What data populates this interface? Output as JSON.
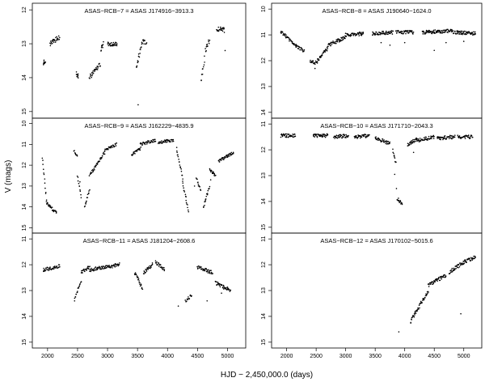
{
  "figure": {
    "ylabel": "V (mags)",
    "xlabel": "HJD − 2,450,000.0 (days)"
  },
  "chart_data": [
    {
      "type": "scatter",
      "title": "ASAS−RCB−7 = ASAS J174916−3913.3",
      "xlim": [
        1800,
        5250
      ],
      "ylim": [
        15.1,
        11.9
      ],
      "y_inverted": true,
      "x_ticks": [],
      "y_ticks": [
        12,
        13,
        14,
        15
      ],
      "series": [
        {
          "segments": [
            {
              "x": [
                1930,
                1960
              ],
              "y": [
                13.55,
                13.55
              ]
            },
            {
              "x": [
                2040,
                2200
              ],
              "y": [
                13.0,
                12.8
              ]
            },
            {
              "x": [
                2480,
                2510
              ],
              "y": [
                13.9,
                13.95
              ]
            },
            {
              "x": [
                2700,
                2880
              ],
              "y": [
                14.0,
                13.6
              ]
            },
            {
              "x": [
                2890,
                2930
              ],
              "y": [
                13.2,
                13.0
              ]
            },
            {
              "x": [
                3000,
                3160
              ],
              "y": [
                13.0,
                13.0
              ]
            },
            {
              "x": [
                3480,
                3580
              ],
              "y": [
                13.7,
                12.95
              ]
            },
            {
              "x": [
                3590,
                3650
              ],
              "y": [
                12.9,
                13.0
              ]
            },
            {
              "x": [
                4560,
                4620
              ],
              "y": [
                14.1,
                13.4
              ]
            },
            {
              "x": [
                4630,
                4700
              ],
              "y": [
                13.2,
                12.9
              ]
            },
            {
              "x": [
                4820,
                4950
              ],
              "y": [
                12.55,
                12.6
              ]
            }
          ],
          "points": [
            {
              "x": 3510,
              "y": 14.8
            },
            {
              "x": 4960,
              "y": 13.2
            }
          ]
        }
      ]
    },
    {
      "type": "scatter",
      "title": "ASAS−RCB−8 = ASAS J190640−1624.0",
      "xlim": [
        1800,
        5250
      ],
      "ylim": [
        14.1,
        9.9
      ],
      "y_inverted": true,
      "x_ticks": [],
      "y_ticks": [
        10,
        11,
        12,
        13,
        14
      ],
      "series": [
        {
          "segments": [
            {
              "x": [
                1900,
                2100
              ],
              "y": [
                10.85,
                11.3
              ]
            },
            {
              "x": [
                2100,
                2300
              ],
              "y": [
                11.3,
                11.65
              ]
            },
            {
              "x": [
                2400,
                2520
              ],
              "y": [
                12.0,
                12.1
              ]
            },
            {
              "x": [
                2520,
                2700
              ],
              "y": [
                12.0,
                11.5
              ]
            },
            {
              "x": [
                2700,
                3000
              ],
              "y": [
                11.4,
                11.1
              ]
            },
            {
              "x": [
                3000,
                3300
              ],
              "y": [
                11.0,
                10.95
              ]
            },
            {
              "x": [
                3450,
                3800
              ],
              "y": [
                10.95,
                10.9
              ]
            },
            {
              "x": [
                3850,
                4150
              ],
              "y": [
                10.9,
                10.9
              ]
            },
            {
              "x": [
                4300,
                4800
              ],
              "y": [
                10.9,
                10.85
              ]
            },
            {
              "x": [
                4800,
                5200
              ],
              "y": [
                10.9,
                10.95
              ]
            }
          ],
          "points": [
            {
              "x": 2480,
              "y": 12.3
            },
            {
              "x": 3600,
              "y": 11.3
            },
            {
              "x": 3750,
              "y": 11.4
            },
            {
              "x": 4000,
              "y": 11.3
            },
            {
              "x": 4500,
              "y": 11.6
            },
            {
              "x": 4700,
              "y": 11.3
            },
            {
              "x": 5000,
              "y": 11.25
            }
          ]
        }
      ]
    },
    {
      "type": "scatter",
      "title": "ASAS−RCB−9 = ASAS J162229−4835.9",
      "xlim": [
        1800,
        5250
      ],
      "ylim": [
        15.1,
        9.9
      ],
      "y_inverted": true,
      "x_ticks": [],
      "y_ticks": [
        10,
        11,
        12,
        13,
        14,
        15
      ],
      "series": [
        {
          "segments": [
            {
              "x": [
                1910,
                1980
              ],
              "y": [
                11.6,
                13.6
              ]
            },
            {
              "x": [
                1980,
                2150
              ],
              "y": [
                13.8,
                14.3
              ]
            },
            {
              "x": [
                2440,
                2500
              ],
              "y": [
                11.3,
                11.6
              ]
            },
            {
              "x": [
                2500,
                2560
              ],
              "y": [
                12.5,
                13.5
              ]
            },
            {
              "x": [
                2620,
                2700
              ],
              "y": [
                14.0,
                13.2
              ]
            },
            {
              "x": [
                2700,
                2950
              ],
              "y": [
                12.5,
                11.4
              ]
            },
            {
              "x": [
                2950,
                3150
              ],
              "y": [
                11.3,
                11.0
              ]
            },
            {
              "x": [
                3400,
                3550
              ],
              "y": [
                11.5,
                11.2
              ]
            },
            {
              "x": [
                3550,
                3800
              ],
              "y": [
                11.0,
                10.8
              ]
            },
            {
              "x": [
                3850,
                4100
              ],
              "y": [
                10.9,
                10.8
              ]
            },
            {
              "x": [
                4150,
                4250
              ],
              "y": [
                11.2,
                12.6
              ]
            },
            {
              "x": [
                4250,
                4350
              ],
              "y": [
                12.8,
                14.2
              ]
            },
            {
              "x": [
                4480,
                4550
              ],
              "y": [
                12.6,
                13.2
              ]
            },
            {
              "x": [
                4600,
                4700
              ],
              "y": [
                14.0,
                13.0
              ]
            },
            {
              "x": [
                4700,
                4800
              ],
              "y": [
                12.2,
                12.5
              ]
            },
            {
              "x": [
                4850,
                5100
              ],
              "y": [
                11.8,
                11.4
              ]
            }
          ],
          "points": [
            {
              "x": 2540,
              "y": 12.8
            },
            {
              "x": 4450,
              "y": 13.0
            },
            {
              "x": 4720,
              "y": 12.7
            }
          ]
        }
      ]
    },
    {
      "type": "scatter",
      "title": "ASAS−RCB−10 = ASAS J171710−2043.3",
      "xlim": [
        1800,
        5250
      ],
      "ylim": [
        15.1,
        10.9
      ],
      "y_inverted": true,
      "x_ticks": [],
      "y_ticks": [
        11,
        12,
        13,
        14,
        15
      ],
      "series": [
        {
          "segments": [
            {
              "x": [
                1900,
                2150
              ],
              "y": [
                11.45,
                11.45
              ]
            },
            {
              "x": [
                2450,
                2700
              ],
              "y": [
                11.45,
                11.45
              ]
            },
            {
              "x": [
                2800,
                3050
              ],
              "y": [
                11.5,
                11.45
              ]
            },
            {
              "x": [
                3150,
                3400
              ],
              "y": [
                11.5,
                11.45
              ]
            },
            {
              "x": [
                3500,
                3750
              ],
              "y": [
                11.55,
                11.75
              ]
            },
            {
              "x": [
                3800,
                3850
              ],
              "y": [
                12.0,
                12.5
              ]
            },
            {
              "x": [
                3870,
                3960
              ],
              "y": [
                13.9,
                14.1
              ]
            },
            {
              "x": [
                4050,
                4200
              ],
              "y": [
                11.8,
                11.6
              ]
            },
            {
              "x": [
                4200,
                4500
              ],
              "y": [
                11.65,
                11.5
              ]
            },
            {
              "x": [
                4550,
                4850
              ],
              "y": [
                11.55,
                11.5
              ]
            },
            {
              "x": [
                4900,
                5150
              ],
              "y": [
                11.5,
                11.5
              ]
            }
          ],
          "points": [
            {
              "x": 3830,
              "y": 12.95
            },
            {
              "x": 3860,
              "y": 13.5
            },
            {
              "x": 4150,
              "y": 12.1
            }
          ]
        }
      ]
    },
    {
      "type": "scatter",
      "title": "ASAS−RCB−11 = ASAS J181204−2608.6",
      "xlim": [
        1800,
        5250
      ],
      "ylim": [
        15.1,
        10.9
      ],
      "y_inverted": true,
      "x_ticks": [
        2000,
        2500,
        3000,
        3500,
        4000,
        4500,
        5000
      ],
      "y_ticks": [
        11,
        12,
        13,
        14,
        15
      ],
      "series": [
        {
          "segments": [
            {
              "x": [
                1930,
                2200
              ],
              "y": [
                12.2,
                12.05
              ]
            },
            {
              "x": [
                2450,
                2560
              ],
              "y": [
                13.4,
                12.6
              ]
            },
            {
              "x": [
                2560,
                2700
              ],
              "y": [
                12.3,
                12.1
              ]
            },
            {
              "x": [
                2700,
                3200
              ],
              "y": [
                12.2,
                12.0
              ]
            },
            {
              "x": [
                3450,
                3580
              ],
              "y": [
                12.3,
                12.9
              ]
            },
            {
              "x": [
                3600,
                3750
              ],
              "y": [
                12.3,
                12.0
              ]
            },
            {
              "x": [
                3800,
                3950
              ],
              "y": [
                11.9,
                12.2
              ]
            },
            {
              "x": [
                4300,
                4400
              ],
              "y": [
                13.4,
                13.2
              ]
            },
            {
              "x": [
                4500,
                4750
              ],
              "y": [
                12.1,
                12.3
              ]
            },
            {
              "x": [
                4800,
                5050
              ],
              "y": [
                12.7,
                13.0
              ]
            }
          ],
          "points": [
            {
              "x": 4180,
              "y": 13.6
            },
            {
              "x": 4660,
              "y": 13.4
            },
            {
              "x": 4900,
              "y": 13.1
            }
          ]
        }
      ]
    },
    {
      "type": "scatter",
      "title": "ASAS−RCB−12 = ASAS J170102−5015.6",
      "xlim": [
        1800,
        5250
      ],
      "ylim": [
        15.1,
        10.9
      ],
      "y_inverted": true,
      "x_ticks": [
        2000,
        2500,
        3000,
        3500,
        4000,
        4500,
        5000
      ],
      "y_ticks": [
        11,
        12,
        13,
        14,
        15
      ],
      "series": [
        {
          "segments": [
            {
              "x": [
                4100,
                4400
              ],
              "y": [
                14.2,
                13.0
              ]
            },
            {
              "x": [
                4400,
                4700
              ],
              "y": [
                12.8,
                12.4
              ]
            },
            {
              "x": [
                4750,
                5000
              ],
              "y": [
                12.3,
                11.9
              ]
            },
            {
              "x": [
                5000,
                5200
              ],
              "y": [
                11.9,
                11.7
              ]
            }
          ],
          "points": [
            {
              "x": 3900,
              "y": 14.6
            },
            {
              "x": 4950,
              "y": 13.9
            }
          ]
        }
      ]
    }
  ]
}
